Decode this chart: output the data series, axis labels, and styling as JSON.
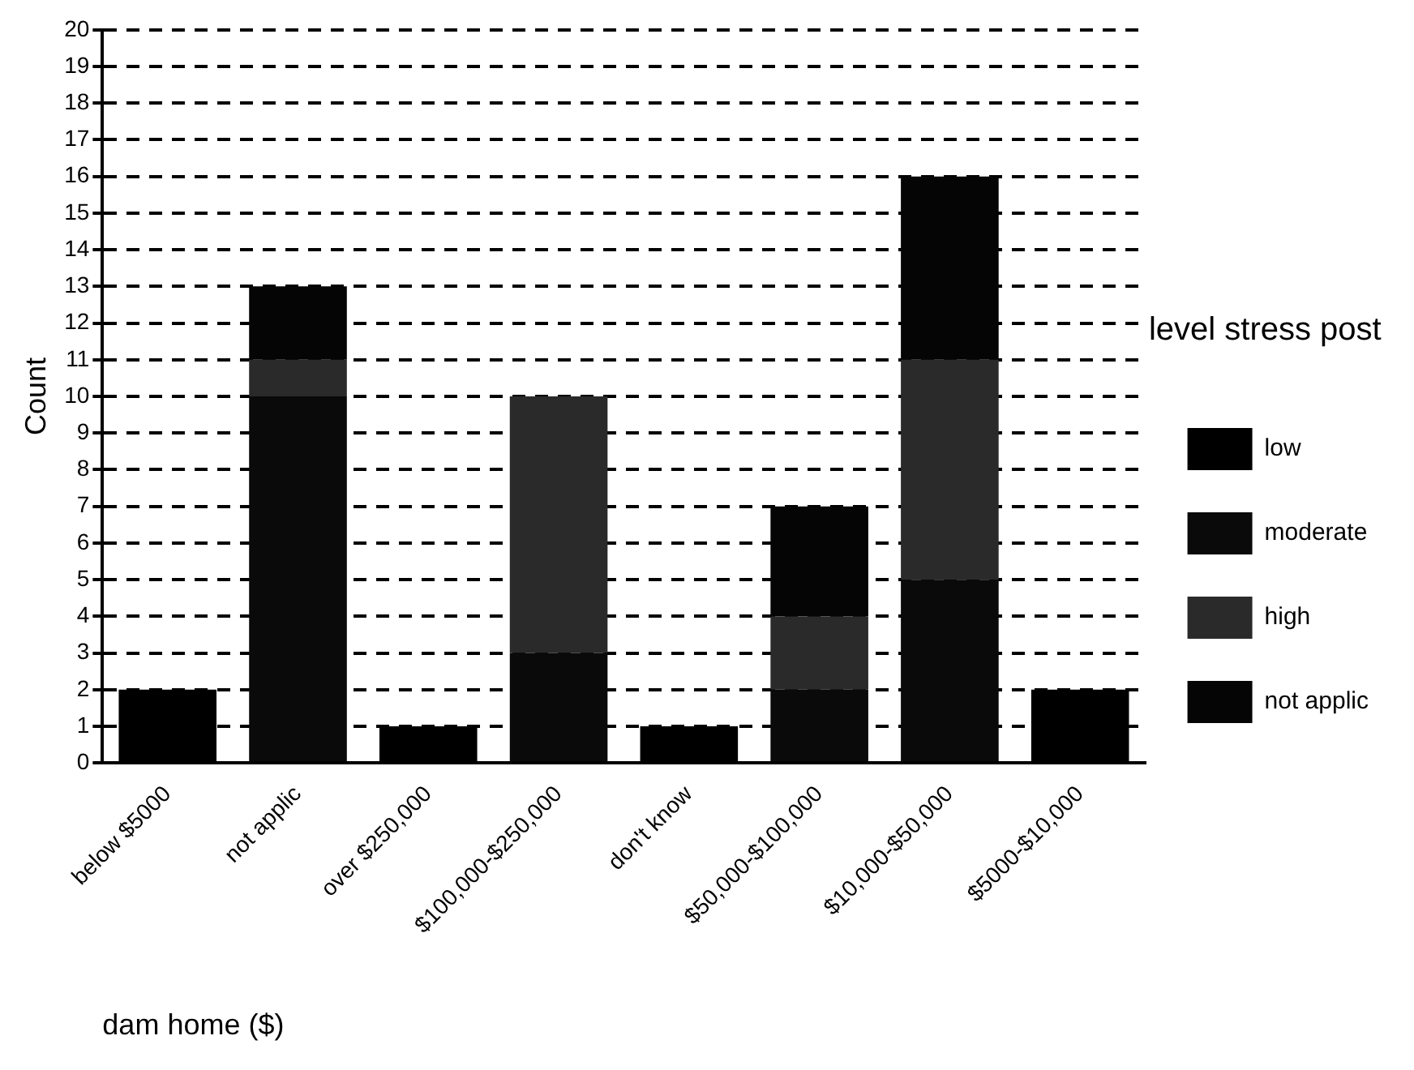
{
  "chart_data": {
    "type": "bar",
    "stacked": true,
    "xlabel": "dam home ($)",
    "ylabel": "Count",
    "legend_title": "level stress post",
    "legend": "right",
    "grid": "y",
    "categories": [
      "below $5000",
      "not applic",
      "over $250,000",
      "$100,000-$250,000",
      "don't know",
      "$50,000-$100,000",
      "$10,000-$50,000",
      "$5000-$10,000"
    ],
    "ylim": [
      0,
      20
    ],
    "yticks": [
      0,
      1,
      2,
      3,
      4,
      5,
      6,
      7,
      8,
      9,
      10,
      11,
      12,
      13,
      14,
      15,
      16,
      17,
      18,
      19,
      20
    ],
    "series": [
      {
        "name": "low",
        "color": "#000000",
        "values": [
          2,
          null,
          1,
          null,
          1,
          null,
          null,
          2
        ]
      },
      {
        "name": "moderate",
        "color": "#0a0a0a",
        "values": [
          null,
          10,
          null,
          3,
          null,
          2,
          5,
          null
        ]
      },
      {
        "name": "high",
        "color": "#2a2a2a",
        "values": [
          null,
          1,
          null,
          7,
          null,
          2,
          6,
          null
        ]
      },
      {
        "name": "not applic",
        "color": "#050505",
        "values": [
          null,
          2,
          null,
          null,
          null,
          3,
          5,
          null
        ]
      }
    ]
  }
}
